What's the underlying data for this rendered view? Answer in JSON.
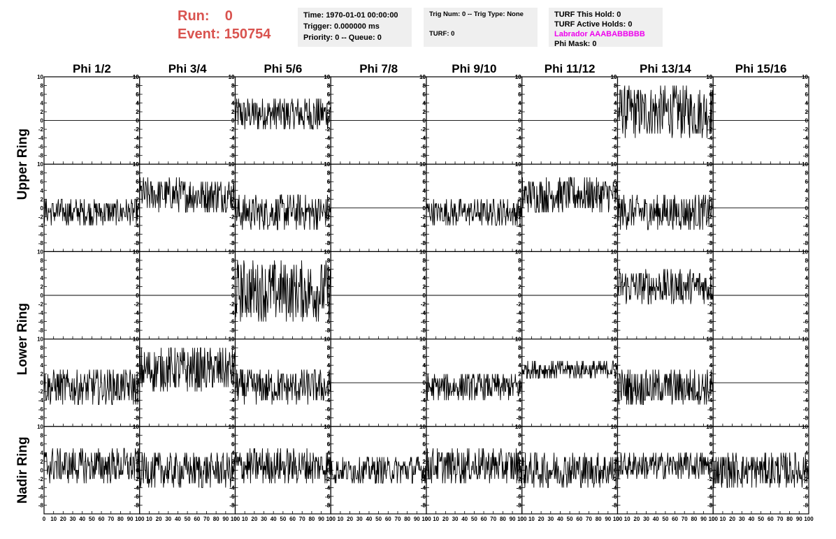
{
  "header": {
    "run_label": "Run:",
    "run_value": "0",
    "event_label": "Event:",
    "event_value": "150754"
  },
  "info_time": {
    "time": "Time: 1970-01-01 00:00:00",
    "trigger": "Trigger: 0.000000 ms",
    "priority": "Priority: 0 -- Queue: 0"
  },
  "info_trig": {
    "trig": "Trig Num: 0 -- Trig Type: None",
    "turf": "TURF: 0"
  },
  "info_turf": {
    "this_hold": "TURF This Hold: 0",
    "active_holds": "TURF Active Holds: 0",
    "labrador": "Labrador AAABABBBBB",
    "phi_mask": "Phi Mask: 0"
  },
  "colors": {
    "labrador": "#ee00ee",
    "run_text": "#d9534f",
    "trace": "#000000"
  },
  "chart_data": {
    "type": "line",
    "columns": [
      "Phi 1/2",
      "Phi 3/4",
      "Phi 5/6",
      "Phi 7/8",
      "Phi 9/10",
      "Phi 11/12",
      "Phi 13/14",
      "Phi 15/16"
    ],
    "ring_labels": [
      {
        "label": "Upper Ring",
        "rows": [
          0,
          1
        ]
      },
      {
        "label": "Lower Ring",
        "rows": [
          2,
          3
        ]
      },
      {
        "label": "Nadir Ring",
        "rows": [
          4
        ]
      }
    ],
    "xlim": [
      0,
      100
    ],
    "ylim": [
      -10,
      10
    ],
    "x_ticks": [
      0,
      10,
      20,
      30,
      40,
      50,
      60,
      70,
      80,
      90,
      100
    ],
    "y_ticks": [
      -8,
      -6,
      -4,
      -2,
      0,
      2,
      4,
      6,
      8,
      10
    ],
    "grid": false,
    "panels": [
      [
        {
          "mean": 0,
          "amp": 0
        },
        {
          "mean": 0,
          "amp": 0
        },
        {
          "mean": 1.5,
          "amp": 4
        },
        {
          "mean": 0,
          "amp": 0
        },
        {
          "mean": 0,
          "amp": 0
        },
        {
          "mean": 0,
          "amp": 0
        },
        {
          "mean": 2,
          "amp": 6
        },
        {
          "mean": 0,
          "amp": 0
        }
      ],
      [
        {
          "mean": -1,
          "amp": 3
        },
        {
          "mean": 3,
          "amp": 4
        },
        {
          "mean": -1,
          "amp": 4
        },
        {
          "mean": 0,
          "amp": 0
        },
        {
          "mean": -1,
          "amp": 3
        },
        {
          "mean": 3,
          "amp": 4
        },
        {
          "mean": -1,
          "amp": 4
        },
        {
          "mean": 0,
          "amp": 0
        }
      ],
      [
        {
          "mean": 0,
          "amp": 0
        },
        {
          "mean": 0,
          "amp": 0
        },
        {
          "mean": 1,
          "amp": 7
        },
        {
          "mean": 0,
          "amp": 0
        },
        {
          "mean": 0,
          "amp": 0
        },
        {
          "mean": 0,
          "amp": 0
        },
        {
          "mean": 2,
          "amp": 4
        },
        {
          "mean": 0,
          "amp": 0
        }
      ],
      [
        {
          "mean": -1,
          "amp": 4
        },
        {
          "mean": 3,
          "amp": 5
        },
        {
          "mean": -1,
          "amp": 4
        },
        {
          "mean": 0,
          "amp": 0
        },
        {
          "mean": -1,
          "amp": 3
        },
        {
          "mean": 3,
          "amp": 2
        },
        {
          "mean": -1,
          "amp": 4
        },
        {
          "mean": 0,
          "amp": 0
        }
      ],
      [
        {
          "mean": 1,
          "amp": 4
        },
        {
          "mean": 0,
          "amp": 4
        },
        {
          "mean": 1,
          "amp": 4
        },
        {
          "mean": 0,
          "amp": 3
        },
        {
          "mean": 1,
          "amp": 4
        },
        {
          "mean": 0,
          "amp": 4
        },
        {
          "mean": 1,
          "amp": 3
        },
        {
          "mean": 0,
          "amp": 4
        }
      ]
    ]
  }
}
